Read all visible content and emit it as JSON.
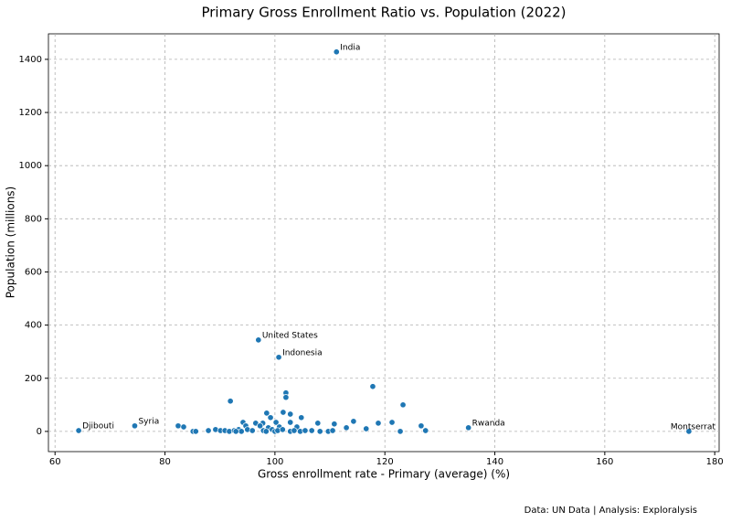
{
  "chart_data": {
    "type": "scatter",
    "title": "Primary Gross Enrollment Ratio vs. Population (2022)",
    "x_label": "Gross enrollment rate - Primary (average) (%)",
    "y_label": "Population (millions)",
    "footer": "Data: UN Data | Analysis: Exploralysis",
    "color": "#1f77b4",
    "grid": true,
    "xlim": [
      58.8,
      180.8
    ],
    "xticks": [
      60,
      80,
      100,
      120,
      140,
      160,
      180
    ],
    "ylim": [
      -76,
      1496
    ],
    "yticks": [
      0,
      200,
      400,
      600,
      800,
      1000,
      1200,
      1400
    ],
    "x": [
      111.2,
      97.0,
      100.7,
      74.5,
      64.3,
      135.2,
      175.3,
      91.9,
      117.8,
      123.3,
      102.0,
      102.0,
      101.5,
      102.8,
      98.5,
      99.2,
      104.8,
      94.2,
      96.5,
      97.8,
      100.2,
      102.8,
      107.8,
      114.3,
      118.8,
      121.3,
      126.6,
      110.8,
      82.4,
      83.4,
      94.7,
      97.3,
      98.8,
      100.8,
      104.0,
      113.0,
      116.6,
      85.1,
      85.6,
      87.9,
      89.2,
      90.1,
      90.9,
      91.7,
      92.6,
      93.4,
      93.9,
      95.0,
      95.9,
      97.9,
      98.4,
      99.5,
      100.0,
      100.5,
      101.4,
      102.8,
      103.5,
      104.6,
      105.5,
      106.7,
      108.2,
      109.7,
      110.5,
      122.8,
      127.4,
      92.9
    ],
    "values": [
      1428,
      344,
      279,
      21,
      3,
      14,
      0,
      114,
      169,
      100,
      145,
      128,
      72,
      65,
      69,
      52,
      52,
      34,
      31,
      31,
      34,
      34,
      31,
      38,
      31,
      34,
      21,
      28,
      21,
      17,
      21,
      21,
      14,
      17,
      17,
      14,
      10,
      0,
      0,
      3,
      7,
      3,
      3,
      0,
      3,
      7,
      0,
      7,
      3,
      3,
      0,
      7,
      0,
      3,
      7,
      0,
      3,
      0,
      3,
      3,
      0,
      0,
      3,
      0,
      3,
      0
    ],
    "point_labels": [
      "India",
      "United States",
      "Indonesia",
      "Syria",
      "Djibouti",
      "Rwanda",
      "Montserrat",
      null,
      null,
      null,
      null,
      null,
      null,
      null,
      null,
      null,
      null,
      null,
      null,
      null,
      null,
      null,
      null,
      null,
      null,
      null,
      null,
      null,
      null,
      null,
      null,
      null,
      null,
      null,
      null,
      null,
      null,
      null,
      null,
      null,
      null,
      null,
      null,
      null,
      null,
      null,
      null,
      null,
      null,
      null,
      null,
      null,
      null,
      null,
      null,
      null,
      null,
      null,
      null,
      null,
      null,
      null,
      null,
      null,
      null,
      null
    ]
  }
}
